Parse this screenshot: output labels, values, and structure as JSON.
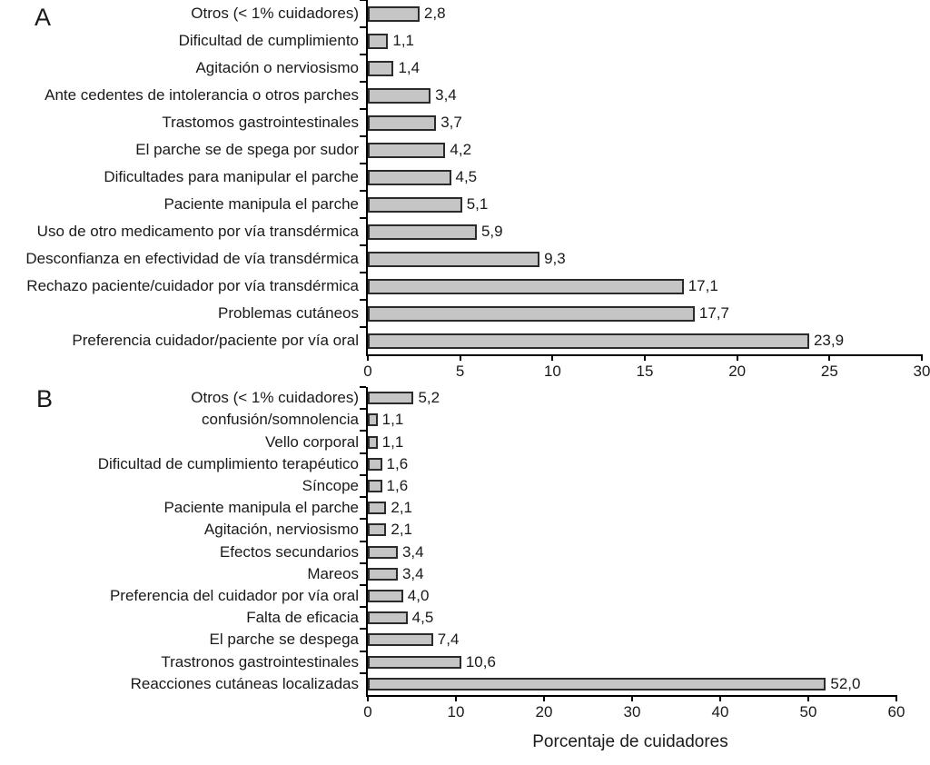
{
  "figure": {
    "xlabel": "Porcentaje de cuidadores"
  },
  "colors": {
    "bar_fill": "#c5c5c5",
    "bar_border": "#2b2b2b",
    "axis": "#000000",
    "text": "#1a1a1a",
    "background": "#ffffff"
  },
  "chart_data": [
    {
      "id": "panel-a",
      "panel_letter": "A",
      "type": "bar",
      "orientation": "horizontal",
      "categories": [
        "Otros (< 1% cuidadores)",
        "Dificultad de cumplimiento",
        "Agitación o nerviosismo",
        "Ante cedentes de intolerancia o otros parches",
        "Trastomos gastrointestinales",
        "El parche se de spega por sudor",
        "Dificultades para manipular el parche",
        "Paciente manipula el parche",
        "Uso de otro medicamento  por vía transdérmica",
        "Desconfianza en efectividad de vía transdérmica",
        "Rechazo paciente/cuidador por vía transdérmica",
        "Problemas cutáneos",
        "Preferencia cuidador/paciente por vía oral"
      ],
      "values": [
        2.8,
        1.1,
        1.4,
        3.4,
        3.7,
        4.2,
        4.5,
        5.1,
        5.9,
        9.3,
        17.1,
        17.7,
        23.9
      ],
      "value_labels": [
        "2,8",
        "1,1",
        "1,4",
        "3,4",
        "3,7",
        "4,2",
        "4,5",
        "5,1",
        "5,9",
        "9,3",
        "17,1",
        "17,7",
        "23,9"
      ],
      "xlim": [
        0,
        30
      ],
      "xticks": [
        "0",
        "5",
        "10",
        "15",
        "20",
        "25",
        "30"
      ],
      "xlabel": ""
    },
    {
      "id": "panel-b",
      "panel_letter": "B",
      "type": "bar",
      "orientation": "horizontal",
      "categories": [
        "Otros (< 1% cuidadores)",
        "confusión/somnolencia",
        "Vello corporal",
        "Dificultad de cumplimiento terapéutico",
        "Síncope",
        "Paciente manipula el parche",
        "Agitación, nerviosismo",
        "Efectos secundarios",
        "Mareos",
        "Preferencia del cuidador por vía oral",
        "Falta de eficacia",
        "El parche se despega",
        "Trastronos gastrointestinales",
        "Reacciones cutáneas localizadas"
      ],
      "values": [
        5.2,
        1.1,
        1.1,
        1.6,
        1.6,
        2.1,
        2.1,
        3.4,
        3.4,
        4.0,
        4.5,
        7.4,
        10.6,
        52.0
      ],
      "value_labels": [
        "5,2",
        "1,1",
        "1,1",
        "1,6",
        "1,6",
        "2,1",
        "2,1",
        "3,4",
        "3,4",
        "4,0",
        "4,5",
        "7,4",
        "10,6",
        "52,0"
      ],
      "xlim": [
        0,
        60
      ],
      "xticks": [
        "0",
        "10",
        "20",
        "30",
        "40",
        "50",
        "60"
      ],
      "xlabel": "Porcentaje de cuidadores"
    }
  ]
}
